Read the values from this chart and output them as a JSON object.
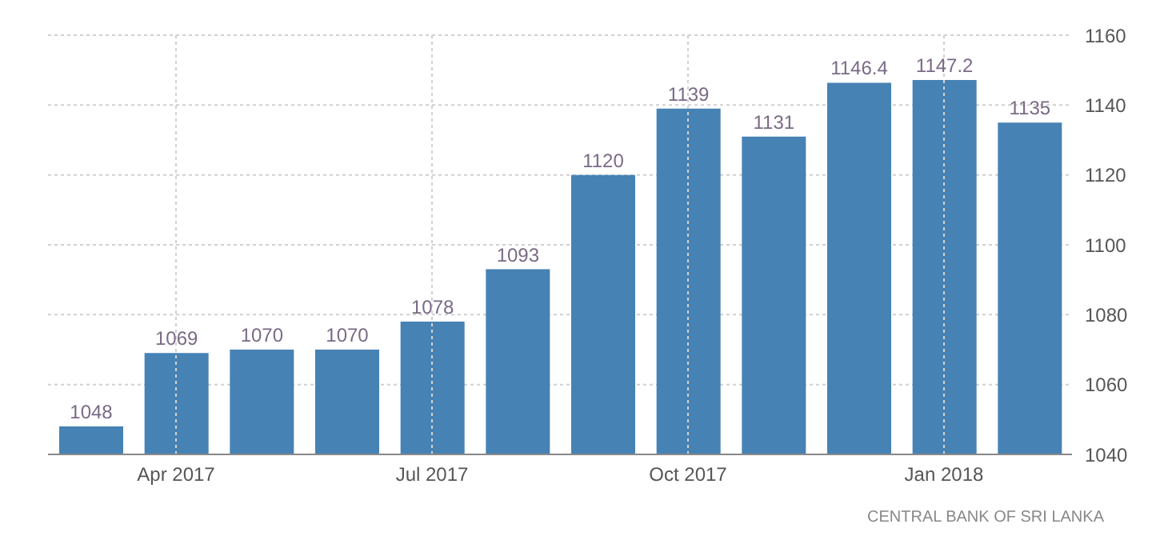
{
  "chart_data": {
    "type": "bar",
    "categories": [
      null,
      "Apr 2017",
      null,
      null,
      "Jul 2017",
      null,
      null,
      "Oct 2017",
      null,
      null,
      "Jan 2018",
      null
    ],
    "values": [
      1048,
      1069,
      1070,
      1070,
      1078,
      1093,
      1120,
      1139,
      1131,
      1146.4,
      1147.2,
      1135
    ],
    "color": "#4682b4",
    "ylim": [
      1040,
      1160
    ],
    "yticks": [
      1040,
      1060,
      1080,
      1100,
      1120,
      1140,
      1160
    ],
    "grid": true,
    "data_labels": true,
    "annotations": [
      "CENTRAL BANK OF SRI LANKA"
    ]
  }
}
